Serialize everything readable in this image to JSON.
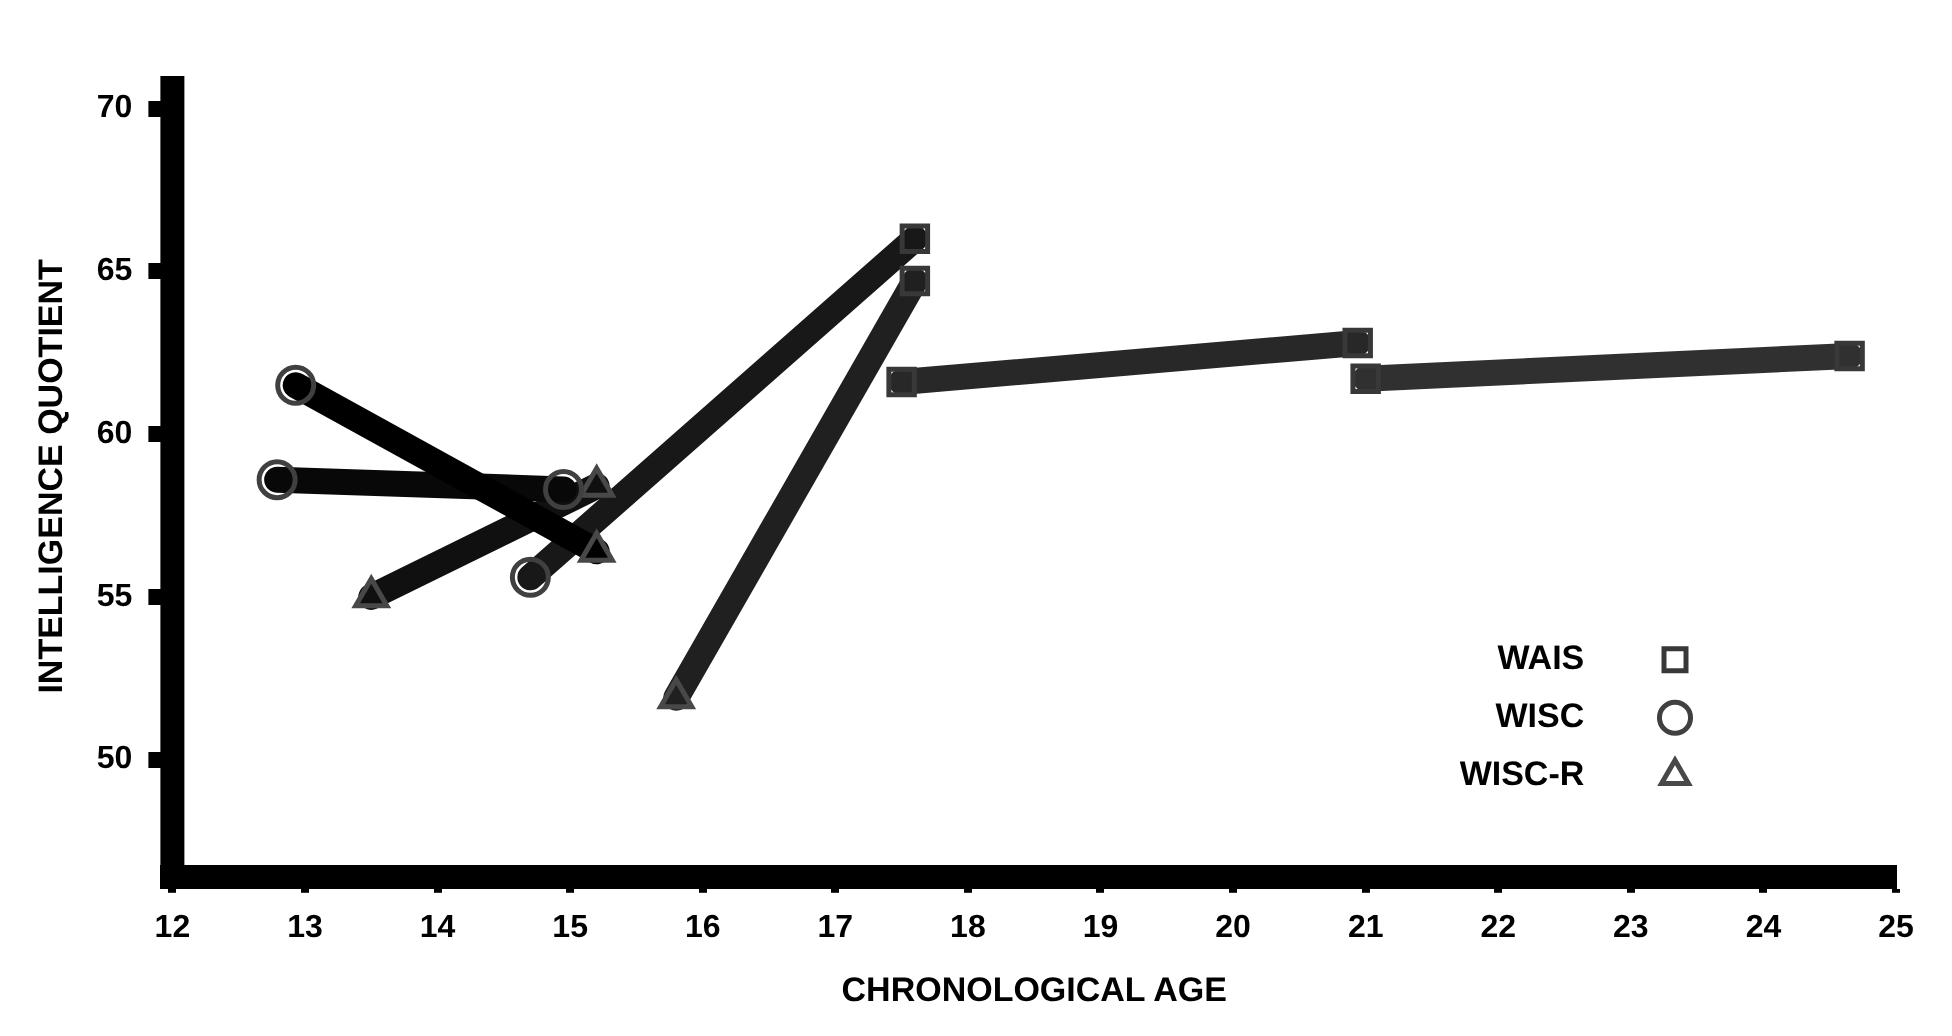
{
  "chart_data": {
    "type": "line",
    "xlabel": "CHRONOLOGICAL AGE",
    "ylabel": "INTELLIGENCE QUOTIENT",
    "xlim": [
      12,
      25
    ],
    "ylim": [
      46.4,
      71
    ],
    "xticks": [
      12,
      13,
      14,
      15,
      16,
      17,
      18,
      19,
      20,
      21,
      22,
      23,
      24,
      25
    ],
    "yticks": [
      50,
      55,
      60,
      65,
      70
    ],
    "grid": false,
    "legend": "bottom right",
    "series": [
      {
        "type": "line",
        "color": "#000000",
        "marker": "none",
        "x": [
          12.93,
          15.2
        ],
        "values": [
          61.5,
          56.4
        ]
      },
      {
        "type": "line",
        "color": "#080808",
        "marker": "none",
        "x": [
          12.79,
          14.95
        ],
        "values": [
          58.6,
          58.3
        ]
      },
      {
        "type": "line",
        "color": "#101010",
        "marker": "none",
        "x": [
          13.5,
          15.2
        ],
        "values": [
          55.0,
          58.4
        ]
      },
      {
        "type": "line",
        "color": "#181818",
        "marker": "none",
        "x": [
          14.7,
          17.6
        ],
        "values": [
          55.6,
          66.0
        ]
      },
      {
        "type": "line",
        "color": "#202020",
        "marker": "none",
        "x": [
          15.8,
          17.6
        ],
        "values": [
          51.9,
          64.7
        ]
      },
      {
        "type": "line",
        "color": "#282828",
        "marker": "none",
        "x": [
          17.5,
          20.94
        ],
        "values": [
          61.6,
          62.8
        ]
      },
      {
        "type": "line",
        "color": "#303030",
        "marker": "none",
        "x": [
          21.0,
          24.65
        ],
        "values": [
          61.7,
          62.4
        ]
      },
      {
        "name": "WAIS",
        "type": "scatter",
        "color": "#383838",
        "marker": "square",
        "x": [
          17.6,
          17.6,
          17.5,
          20.94,
          21.0,
          24.65
        ],
        "values": [
          66.0,
          64.7,
          61.6,
          62.8,
          61.7,
          62.4
        ]
      },
      {
        "name": "WISC",
        "type": "scatter",
        "color": "#404040",
        "marker": "circle",
        "x": [
          12.93,
          12.79,
          14.95,
          14.7
        ],
        "values": [
          61.5,
          58.6,
          58.3,
          55.6
        ]
      },
      {
        "name": "WISC-R",
        "type": "scatter",
        "color": "#484848",
        "marker": "triangle",
        "x": [
          15.2,
          15.2,
          13.5,
          15.8
        ],
        "values": [
          58.4,
          56.4,
          55.0,
          51.9
        ]
      }
    ]
  }
}
